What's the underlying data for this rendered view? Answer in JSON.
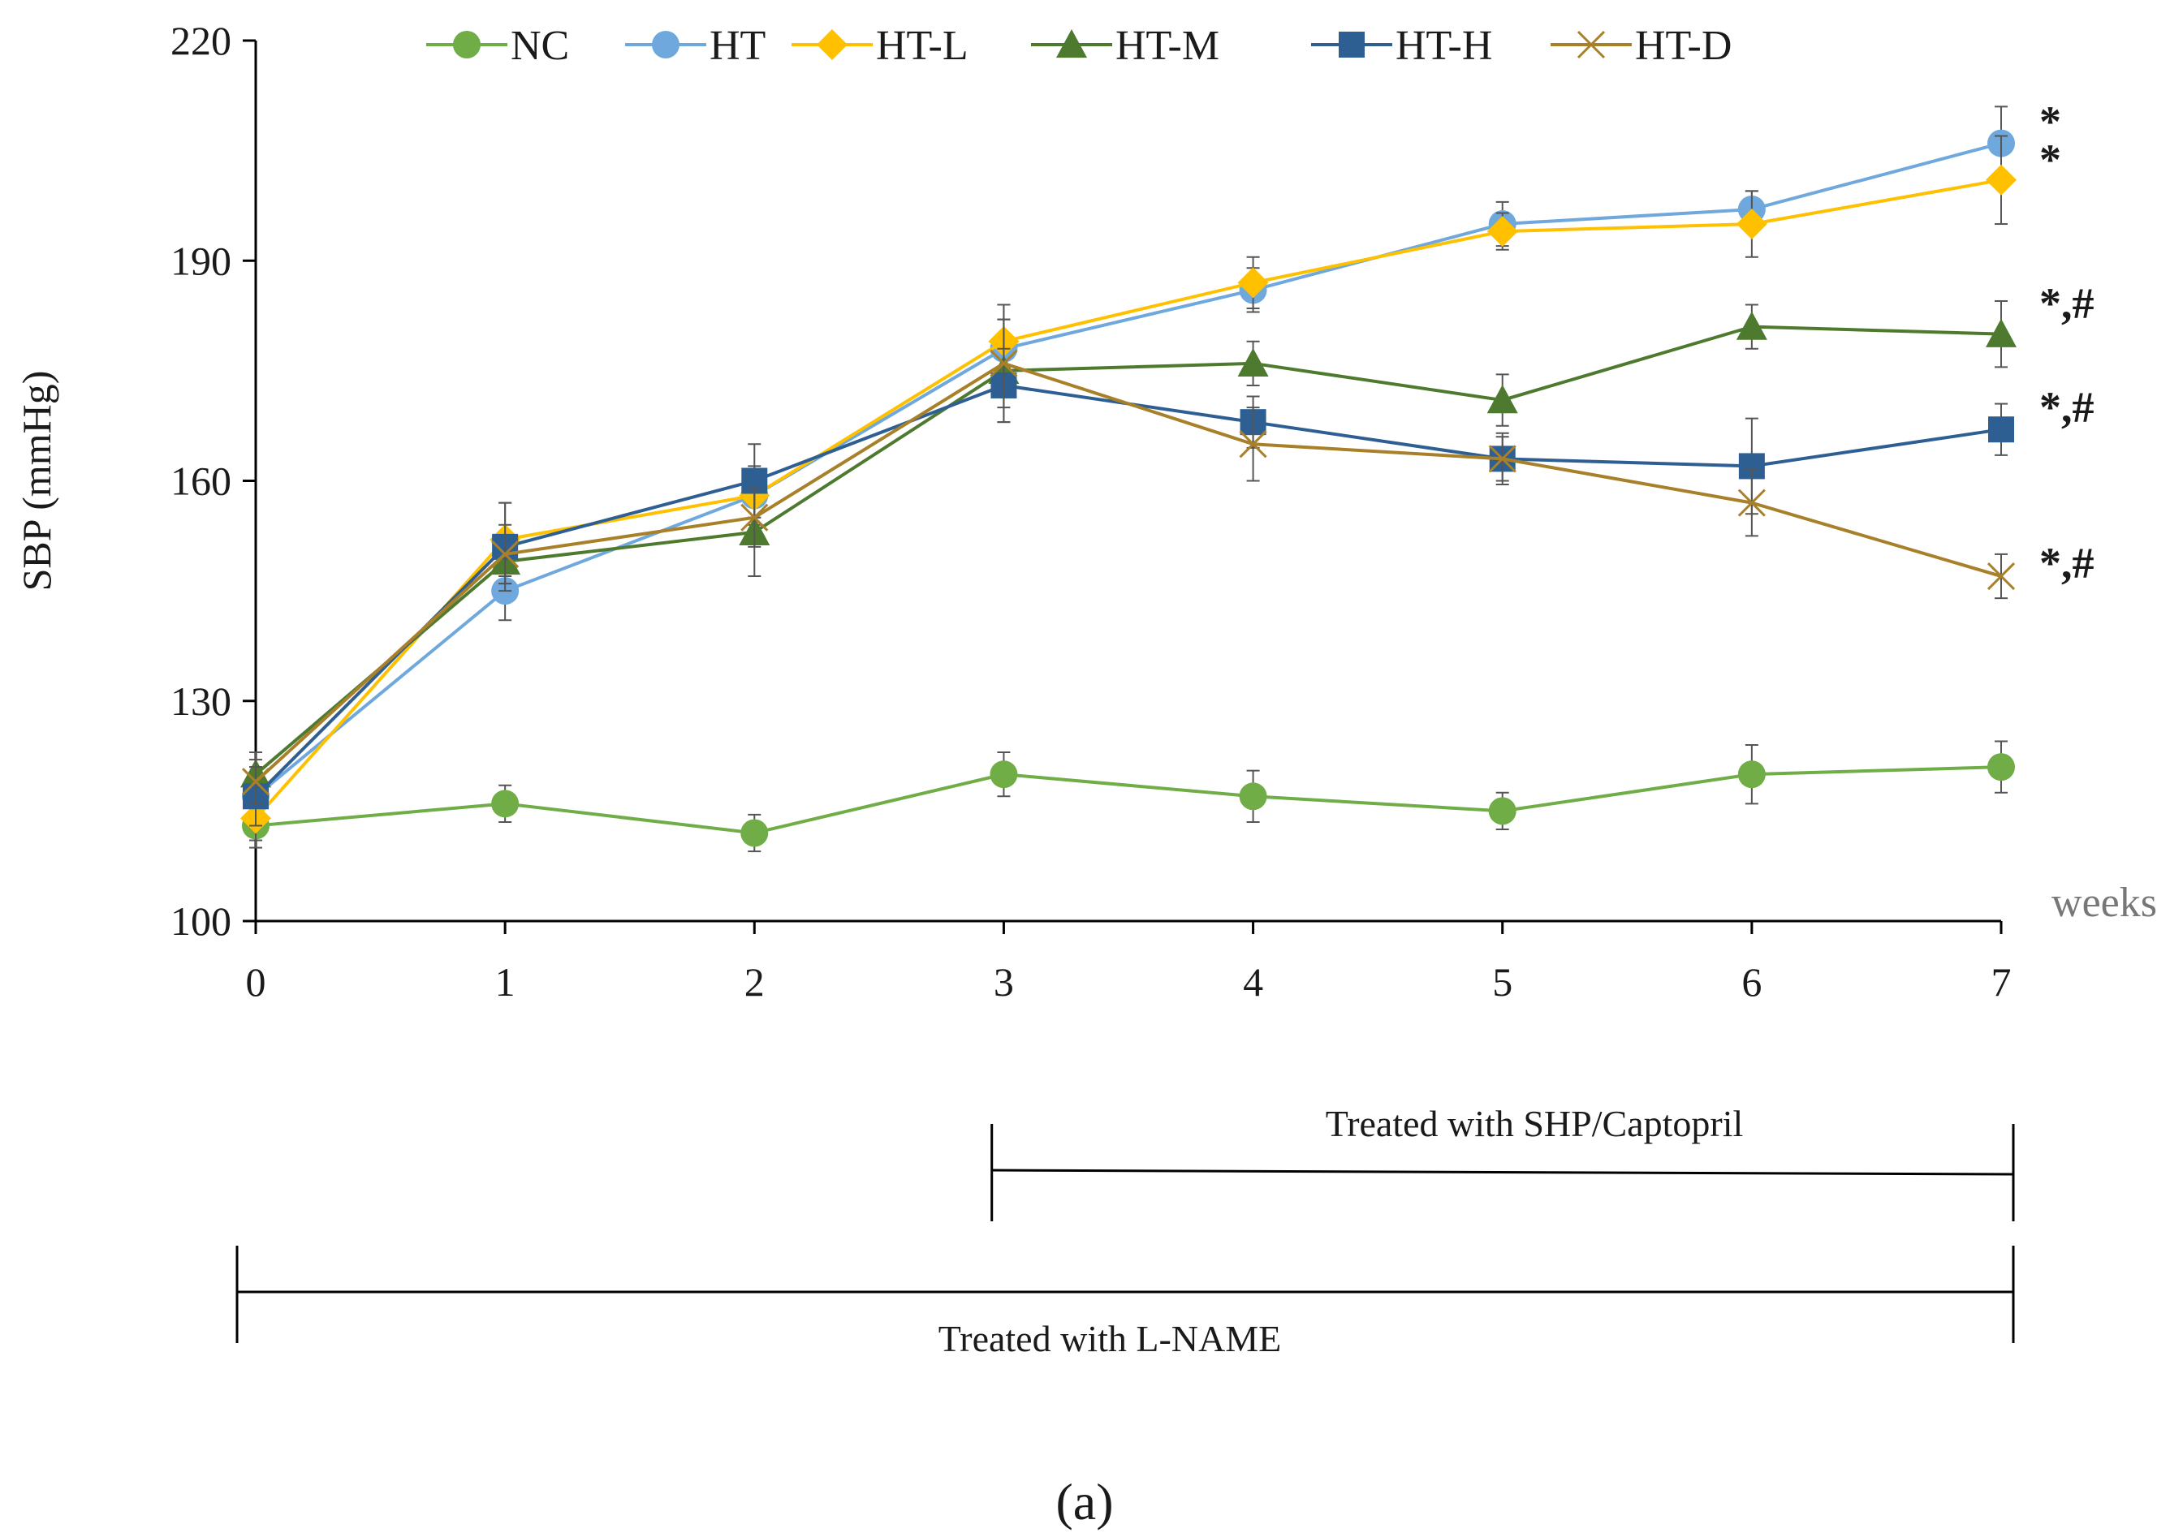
{
  "chart_data": {
    "type": "line",
    "title": "",
    "xlabel": "weeks",
    "ylabel": "SBP (mmHg)",
    "ylim": [
      100,
      220
    ],
    "xlim": [
      0,
      7
    ],
    "yticks": [
      100,
      130,
      160,
      190,
      220
    ],
    "x": [
      0,
      1,
      2,
      3,
      4,
      5,
      6,
      7
    ],
    "grid": false,
    "legend_position": "top",
    "series": [
      {
        "name": "NC",
        "marker": "circle",
        "color": "#70ad47",
        "values": [
          113,
          116,
          112,
          120,
          117,
          115,
          120,
          121
        ],
        "errors": [
          3,
          2.5,
          2.5,
          3,
          3.5,
          2.5,
          4,
          3.5
        ]
      },
      {
        "name": "HT",
        "marker": "circle",
        "color": "#6fa8dc",
        "values": [
          117,
          145,
          158,
          178,
          186,
          195,
          197,
          206
        ],
        "errors": [
          4,
          4,
          4,
          6,
          3,
          3,
          2.5,
          5
        ]
      },
      {
        "name": "HT-L",
        "marker": "diamond",
        "color": "#ffc000",
        "values": [
          114,
          152,
          158,
          179,
          187,
          194,
          195,
          201
        ],
        "errors": [
          3,
          5,
          3,
          5,
          3.5,
          2.5,
          4.5,
          6
        ]
      },
      {
        "name": "HT-M",
        "marker": "triangle",
        "color": "#4e7a2f",
        "values": [
          120,
          149,
          153,
          175,
          176,
          171,
          181,
          180
        ],
        "errors": [
          3,
          3,
          6,
          7,
          3,
          3.5,
          3,
          4.5
        ]
      },
      {
        "name": "HT-H",
        "marker": "square",
        "color": "#2e5f93",
        "values": [
          117,
          151,
          160,
          173,
          168,
          163,
          162,
          167
        ],
        "errors": [
          4,
          6,
          5,
          5,
          3.5,
          3,
          6.5,
          3.5
        ]
      },
      {
        "name": "HT-D",
        "marker": "x",
        "color": "#a8802a",
        "values": [
          119,
          150,
          155,
          176,
          165,
          163,
          157,
          147
        ],
        "errors": [
          3,
          4,
          4,
          6,
          5,
          3.5,
          4.5,
          3
        ]
      }
    ],
    "significance": [
      {
        "series": "HT",
        "label": "*"
      },
      {
        "series": "HT-L",
        "label": "*"
      },
      {
        "series": "HT-M",
        "label": "*,#"
      },
      {
        "series": "HT-H",
        "label": "*,#"
      },
      {
        "series": "HT-D",
        "label": "*,#"
      }
    ],
    "treatment_periods": [
      {
        "label": "Treated with SHP/Captopril",
        "start_week": 3,
        "end_week": 7
      },
      {
        "label": "Treated with L-NAME",
        "start_week": 0,
        "end_week": 7
      }
    ],
    "panel_label": "(a)"
  }
}
